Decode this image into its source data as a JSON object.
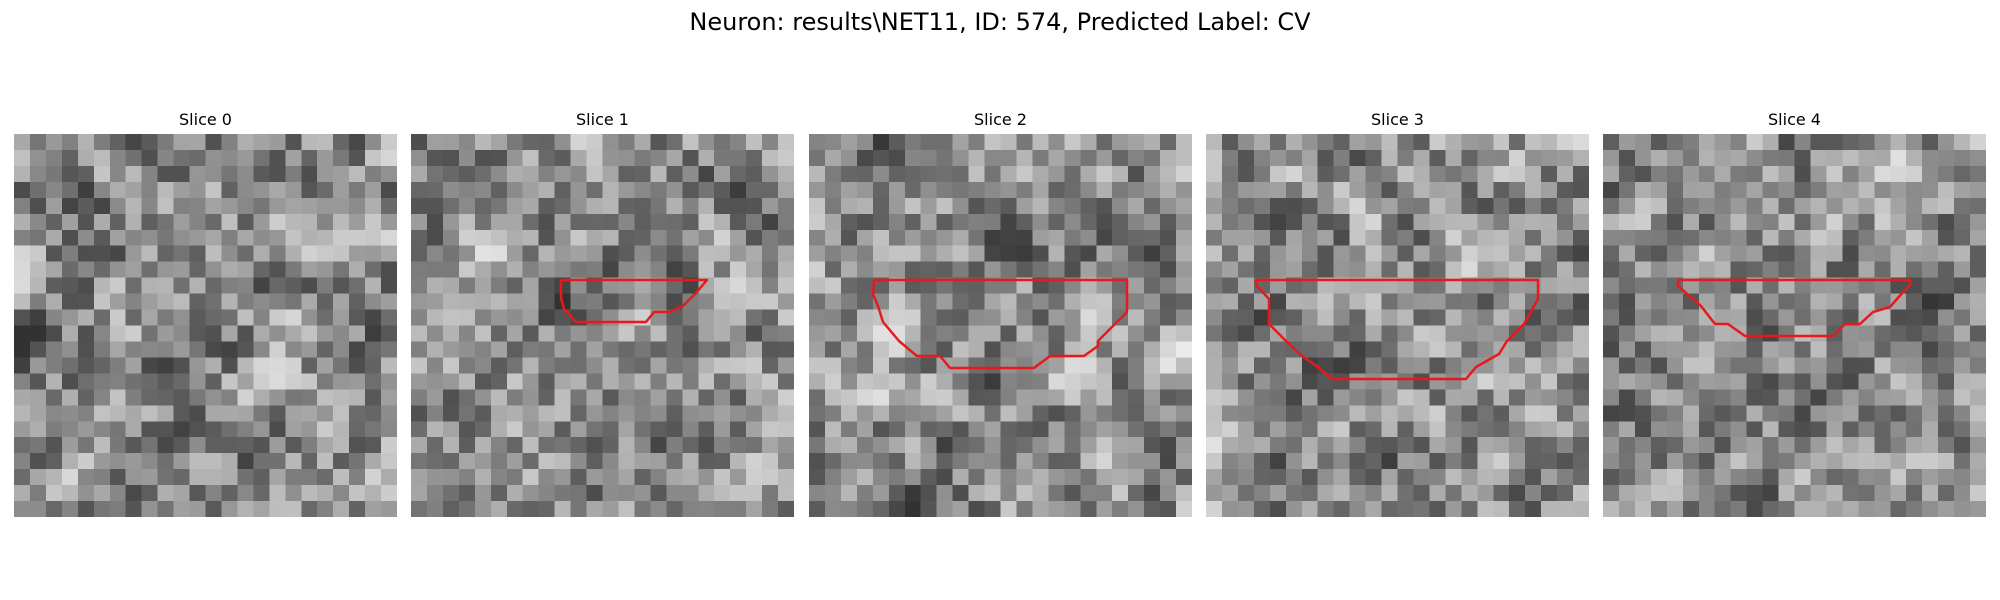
{
  "figure": {
    "title": "Neuron: results\\NET11, ID: 574, Predicted Label: CV"
  },
  "colors": {
    "contour": "#e8191c",
    "background": "#ffffff"
  },
  "slices": [
    {
      "label": "Slice 0",
      "has_contour": false
    },
    {
      "label": "Slice 1",
      "has_contour": true
    },
    {
      "label": "Slice 2",
      "has_contour": true
    },
    {
      "label": "Slice 3",
      "has_contour": true
    },
    {
      "label": "Slice 4",
      "has_contour": true
    }
  ]
}
